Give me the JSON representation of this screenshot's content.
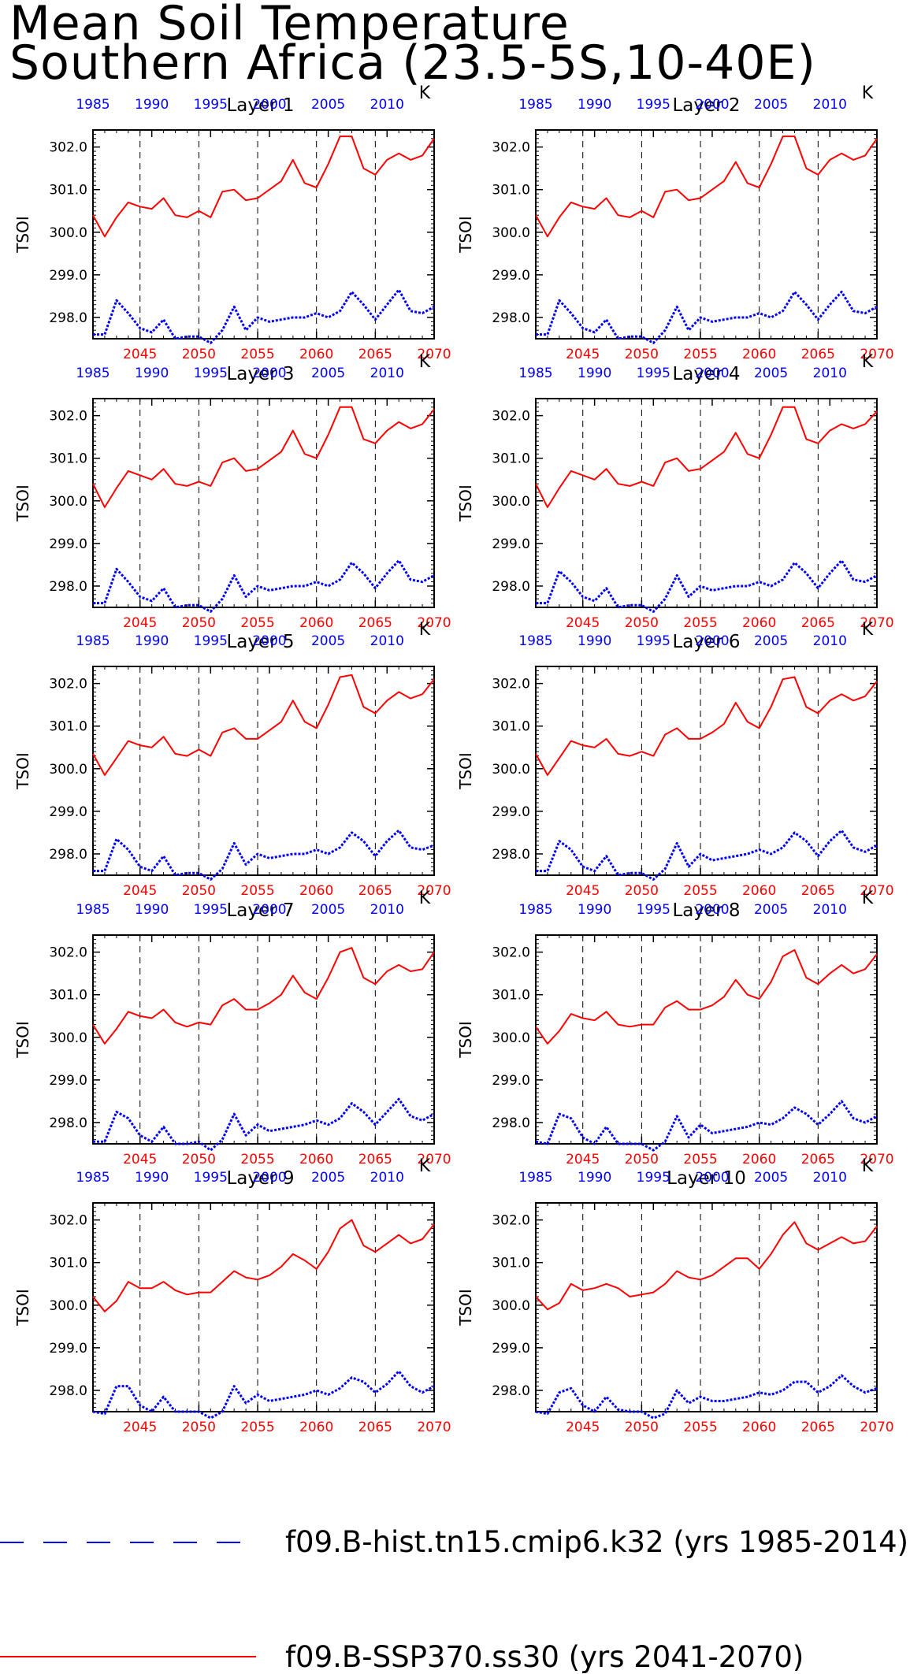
{
  "title_line1": "Mean Soil Temperature",
  "title_line2": "Southern Africa (23.5-5S,10-40E)",
  "colors": {
    "hist": "#0000ff",
    "ssp": "#ff0000",
    "axes": "#000000"
  },
  "chart_data": {
    "type": "line",
    "ylabel": "TSOI",
    "units_label": "K",
    "ylim": [
      297.5,
      302.4
    ],
    "yticks": [
      298.0,
      299.0,
      300.0,
      301.0,
      302.0
    ],
    "ytick_labels": [
      "298.0",
      "299.0",
      "300.0",
      "301.0",
      "302.0"
    ],
    "bottom_axis": {
      "range": [
        2041,
        2070
      ],
      "ticks": [
        2045,
        2050,
        2055,
        2060,
        2065,
        2070
      ],
      "labels": [
        "2045",
        "2050",
        "2055",
        "2060",
        "2065",
        "2070"
      ]
    },
    "top_axis": {
      "range": [
        1985,
        2014
      ],
      "ticks": [
        1985,
        1990,
        1995,
        2000,
        2005,
        2010
      ],
      "labels": [
        "1985",
        "1990",
        "1995",
        "2000",
        "2005",
        "2010"
      ]
    },
    "gridlines_x": [
      2045,
      2050,
      2055,
      2060,
      2065
    ],
    "legend": [
      {
        "label": "f09.B-hist.tn15.cmip6.k32 (yrs 1985-2014)",
        "style": "dashed",
        "color": "#0000ff"
      },
      {
        "label": "f09.B-SSP370.ss30 (yrs 2041-2070)",
        "style": "solid",
        "color": "#ff0000"
      }
    ],
    "panels": [
      {
        "title": "Layer 1",
        "ssp": [
          300.4,
          299.9,
          300.35,
          300.7,
          300.6,
          300.55,
          300.8,
          300.4,
          300.35,
          300.5,
          300.35,
          300.95,
          301.0,
          300.75,
          300.8,
          301.0,
          301.2,
          301.7,
          301.15,
          301.05,
          301.6,
          302.25,
          302.25,
          301.5,
          301.35,
          301.7,
          301.85,
          301.7,
          301.8,
          302.2
        ],
        "hist": [
          297.6,
          297.6,
          298.4,
          298.1,
          297.75,
          297.65,
          297.95,
          297.5,
          297.55,
          297.55,
          297.4,
          297.7,
          298.25,
          297.7,
          298.0,
          297.9,
          297.95,
          298.0,
          298.0,
          298.1,
          298.0,
          298.15,
          298.6,
          298.3,
          297.95,
          298.3,
          298.65,
          298.15,
          298.1,
          298.25
        ]
      },
      {
        "title": "Layer 2",
        "ssp": [
          300.4,
          299.9,
          300.35,
          300.7,
          300.6,
          300.55,
          300.8,
          300.4,
          300.35,
          300.5,
          300.35,
          300.95,
          301.0,
          300.75,
          300.8,
          301.0,
          301.2,
          301.65,
          301.15,
          301.05,
          301.6,
          302.25,
          302.25,
          301.5,
          301.35,
          301.7,
          301.85,
          301.7,
          301.8,
          302.2
        ],
        "hist": [
          297.6,
          297.6,
          298.4,
          298.1,
          297.75,
          297.65,
          297.95,
          297.5,
          297.55,
          297.55,
          297.4,
          297.7,
          298.25,
          297.7,
          298.0,
          297.9,
          297.95,
          298.0,
          298.0,
          298.1,
          298.0,
          298.15,
          298.6,
          298.3,
          297.95,
          298.3,
          298.6,
          298.15,
          298.1,
          298.25
        ]
      },
      {
        "title": "Layer 3",
        "ssp": [
          300.4,
          299.85,
          300.3,
          300.7,
          300.6,
          300.5,
          300.75,
          300.4,
          300.35,
          300.45,
          300.35,
          300.9,
          301.0,
          300.7,
          300.75,
          300.95,
          301.15,
          301.65,
          301.1,
          301.0,
          301.55,
          302.2,
          302.2,
          301.45,
          301.35,
          301.65,
          301.85,
          301.7,
          301.8,
          302.15
        ],
        "hist": [
          297.6,
          297.6,
          298.4,
          298.1,
          297.75,
          297.65,
          297.95,
          297.5,
          297.55,
          297.55,
          297.4,
          297.7,
          298.25,
          297.75,
          298.0,
          297.9,
          297.95,
          298.0,
          298.0,
          298.1,
          298.0,
          298.15,
          298.55,
          298.3,
          297.95,
          298.3,
          298.6,
          298.15,
          298.1,
          298.25
        ]
      },
      {
        "title": "Layer 4",
        "ssp": [
          300.4,
          299.85,
          300.3,
          300.7,
          300.6,
          300.5,
          300.75,
          300.4,
          300.35,
          300.45,
          300.35,
          300.9,
          301.0,
          300.7,
          300.75,
          300.95,
          301.15,
          301.6,
          301.1,
          301.0,
          301.55,
          302.2,
          302.2,
          301.45,
          301.35,
          301.65,
          301.8,
          301.7,
          301.8,
          302.1
        ],
        "hist": [
          297.6,
          297.6,
          298.35,
          298.1,
          297.75,
          297.65,
          297.95,
          297.5,
          297.55,
          297.55,
          297.4,
          297.7,
          298.25,
          297.75,
          298.0,
          297.9,
          297.95,
          298.0,
          298.0,
          298.1,
          298.0,
          298.15,
          298.55,
          298.3,
          297.95,
          298.3,
          298.6,
          298.15,
          298.1,
          298.25
        ]
      },
      {
        "title": "Layer 5",
        "ssp": [
          300.35,
          299.85,
          300.25,
          300.65,
          300.55,
          300.5,
          300.75,
          300.35,
          300.3,
          300.45,
          300.3,
          300.85,
          300.95,
          300.7,
          300.7,
          300.9,
          301.1,
          301.6,
          301.1,
          300.95,
          301.5,
          302.15,
          302.2,
          301.45,
          301.3,
          301.6,
          301.8,
          301.65,
          301.75,
          302.1
        ],
        "hist": [
          297.6,
          297.6,
          298.35,
          298.1,
          297.7,
          297.6,
          297.95,
          297.5,
          297.55,
          297.55,
          297.4,
          297.65,
          298.25,
          297.75,
          298.0,
          297.9,
          297.95,
          298.0,
          298.0,
          298.1,
          298.0,
          298.15,
          298.5,
          298.3,
          297.95,
          298.3,
          298.55,
          298.15,
          298.1,
          298.2
        ]
      },
      {
        "title": "Layer 6",
        "ssp": [
          300.35,
          299.85,
          300.25,
          300.65,
          300.55,
          300.5,
          300.7,
          300.35,
          300.3,
          300.4,
          300.3,
          300.8,
          300.95,
          300.7,
          300.7,
          300.85,
          301.05,
          301.55,
          301.1,
          300.95,
          301.45,
          302.1,
          302.15,
          301.45,
          301.3,
          301.6,
          301.75,
          301.6,
          301.7,
          302.05
        ],
        "hist": [
          297.6,
          297.6,
          298.3,
          298.1,
          297.7,
          297.6,
          297.95,
          297.5,
          297.55,
          297.55,
          297.4,
          297.65,
          298.25,
          297.7,
          298.0,
          297.85,
          297.9,
          297.95,
          298.0,
          298.1,
          298.0,
          298.15,
          298.5,
          298.3,
          297.95,
          298.3,
          298.55,
          298.15,
          298.05,
          298.2
        ]
      },
      {
        "title": "Layer 7",
        "ssp": [
          300.3,
          299.85,
          300.2,
          300.6,
          300.5,
          300.45,
          300.65,
          300.35,
          300.25,
          300.35,
          300.3,
          300.75,
          300.9,
          300.65,
          300.65,
          300.8,
          301.0,
          301.45,
          301.05,
          300.9,
          301.4,
          302.0,
          302.1,
          301.4,
          301.25,
          301.55,
          301.7,
          301.55,
          301.6,
          302.0
        ],
        "hist": [
          297.55,
          297.55,
          298.25,
          298.1,
          297.7,
          297.55,
          297.9,
          297.5,
          297.5,
          297.55,
          297.35,
          297.6,
          298.2,
          297.7,
          297.95,
          297.8,
          297.85,
          297.9,
          297.95,
          298.05,
          297.95,
          298.1,
          298.45,
          298.25,
          297.95,
          298.25,
          298.55,
          298.15,
          298.05,
          298.2
        ]
      },
      {
        "title": "Layer 8",
        "ssp": [
          300.25,
          299.85,
          300.15,
          300.55,
          300.45,
          300.4,
          300.6,
          300.3,
          300.25,
          300.3,
          300.3,
          300.7,
          300.85,
          300.65,
          300.65,
          300.75,
          300.95,
          301.35,
          301.0,
          300.9,
          301.3,
          301.9,
          302.05,
          301.4,
          301.25,
          301.5,
          301.7,
          301.5,
          301.6,
          301.95
        ],
        "hist": [
          297.55,
          297.5,
          298.2,
          298.1,
          297.65,
          297.5,
          297.9,
          297.5,
          297.5,
          297.5,
          297.35,
          297.55,
          298.15,
          297.65,
          297.95,
          297.75,
          297.8,
          297.85,
          297.9,
          298.0,
          297.95,
          298.1,
          298.35,
          298.2,
          297.95,
          298.2,
          298.5,
          298.1,
          298.0,
          298.15
        ]
      },
      {
        "title": "Layer 9",
        "ssp": [
          300.2,
          299.85,
          300.1,
          300.55,
          300.4,
          300.4,
          300.55,
          300.35,
          300.25,
          300.3,
          300.3,
          300.55,
          300.8,
          300.65,
          300.6,
          300.7,
          300.9,
          301.2,
          301.05,
          300.85,
          301.25,
          301.8,
          302.0,
          301.4,
          301.25,
          301.45,
          301.65,
          301.45,
          301.55,
          301.9
        ],
        "hist": [
          297.5,
          297.45,
          298.1,
          298.1,
          297.65,
          297.5,
          297.85,
          297.5,
          297.5,
          297.5,
          297.35,
          297.5,
          298.1,
          297.7,
          297.9,
          297.75,
          297.8,
          297.85,
          297.9,
          298.0,
          297.9,
          298.05,
          298.3,
          298.2,
          297.95,
          298.15,
          298.45,
          298.1,
          297.95,
          298.1
        ]
      },
      {
        "title": "Layer 10",
        "ssp": [
          300.2,
          299.9,
          300.05,
          300.5,
          300.35,
          300.4,
          300.5,
          300.4,
          300.2,
          300.25,
          300.3,
          300.5,
          300.8,
          300.65,
          300.6,
          300.7,
          300.9,
          301.1,
          301.1,
          300.85,
          301.2,
          301.65,
          301.95,
          301.45,
          301.3,
          301.45,
          301.6,
          301.45,
          301.5,
          301.85
        ],
        "hist": [
          297.5,
          297.45,
          297.95,
          298.05,
          297.65,
          297.5,
          297.85,
          297.55,
          297.5,
          297.5,
          297.35,
          297.45,
          298.0,
          297.7,
          297.85,
          297.75,
          297.75,
          297.8,
          297.85,
          297.95,
          297.9,
          298.0,
          298.2,
          298.2,
          297.95,
          298.1,
          298.35,
          298.1,
          297.95,
          298.05
        ]
      }
    ]
  }
}
